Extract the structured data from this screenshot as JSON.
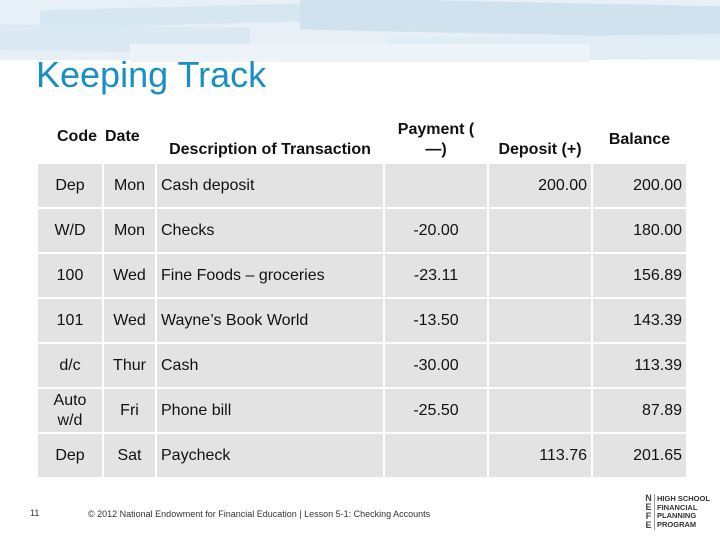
{
  "slide": {
    "title": "Keeping Track",
    "number": "11",
    "footer": "© 2012 National Endowment for Financial Education | Lesson 5-1: Checking Accounts"
  },
  "table": {
    "headers": {
      "code": "Code",
      "date": "Date",
      "description": "Description of Transaction",
      "payment": "Payment ( —)",
      "deposit": "Deposit (+)",
      "balance": "Balance"
    },
    "rows": [
      {
        "code": "Dep",
        "date": "Mon",
        "description": "Cash deposit",
        "payment": "",
        "deposit": "200.00",
        "balance": "200.00"
      },
      {
        "code": "W/D",
        "date": "Mon",
        "description": "Checks",
        "payment": "-20.00",
        "deposit": "",
        "balance": "180.00"
      },
      {
        "code": "100",
        "date": "Wed",
        "description": "Fine Foods – groceries",
        "payment": "-23.11",
        "deposit": "",
        "balance": "156.89"
      },
      {
        "code": "101",
        "date": "Wed",
        "description": "Wayne’s Book World",
        "payment": "-13.50",
        "deposit": "",
        "balance": "143.39"
      },
      {
        "code": "d/c",
        "date": "Thur",
        "description": "Cash",
        "payment": "-30.00",
        "deposit": "",
        "balance": "113.39"
      },
      {
        "code": "Auto w/d",
        "date": "Fri",
        "description": "Phone bill",
        "payment": "-25.50",
        "deposit": "",
        "balance": "87.89"
      },
      {
        "code": "Dep",
        "date": "Sat",
        "description": "Paycheck",
        "payment": "",
        "deposit": "113.76",
        "balance": "201.65"
      }
    ]
  },
  "logo": {
    "mark": [
      "N",
      "E",
      "F",
      "E"
    ],
    "lines": [
      "HIGH SCHOOL",
      "FINANCIAL",
      "PLANNING",
      "PROGRAM"
    ]
  }
}
